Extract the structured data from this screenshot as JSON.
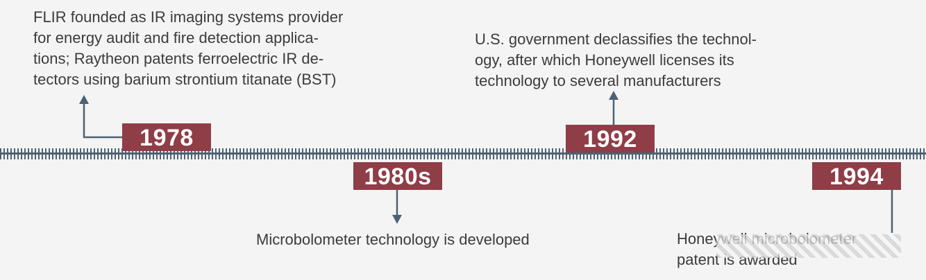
{
  "events": [
    {
      "year": "1978",
      "text": "FLIR founded as IR imaging systems provider\nfor energy audit and fire detection applica-\ntions; Raytheon patents ferroelectric IR de-\ntectors using barium strontium titanate (BST)"
    },
    {
      "year": "1980s",
      "text": "Microbolometer technology is developed"
    },
    {
      "year": "1992",
      "text": "U.S. government declassifies the technol-\nogy, after which Honeywell licenses its\ntechnology to several manufacturers"
    },
    {
      "year": "1994",
      "text": "Honeywell microbolometer\npatent is awarded"
    }
  ],
  "colors": {
    "badge": "#8f3d47",
    "line": "#4d6172",
    "text": "#3b3b3b",
    "background": "#f4f4f4"
  }
}
